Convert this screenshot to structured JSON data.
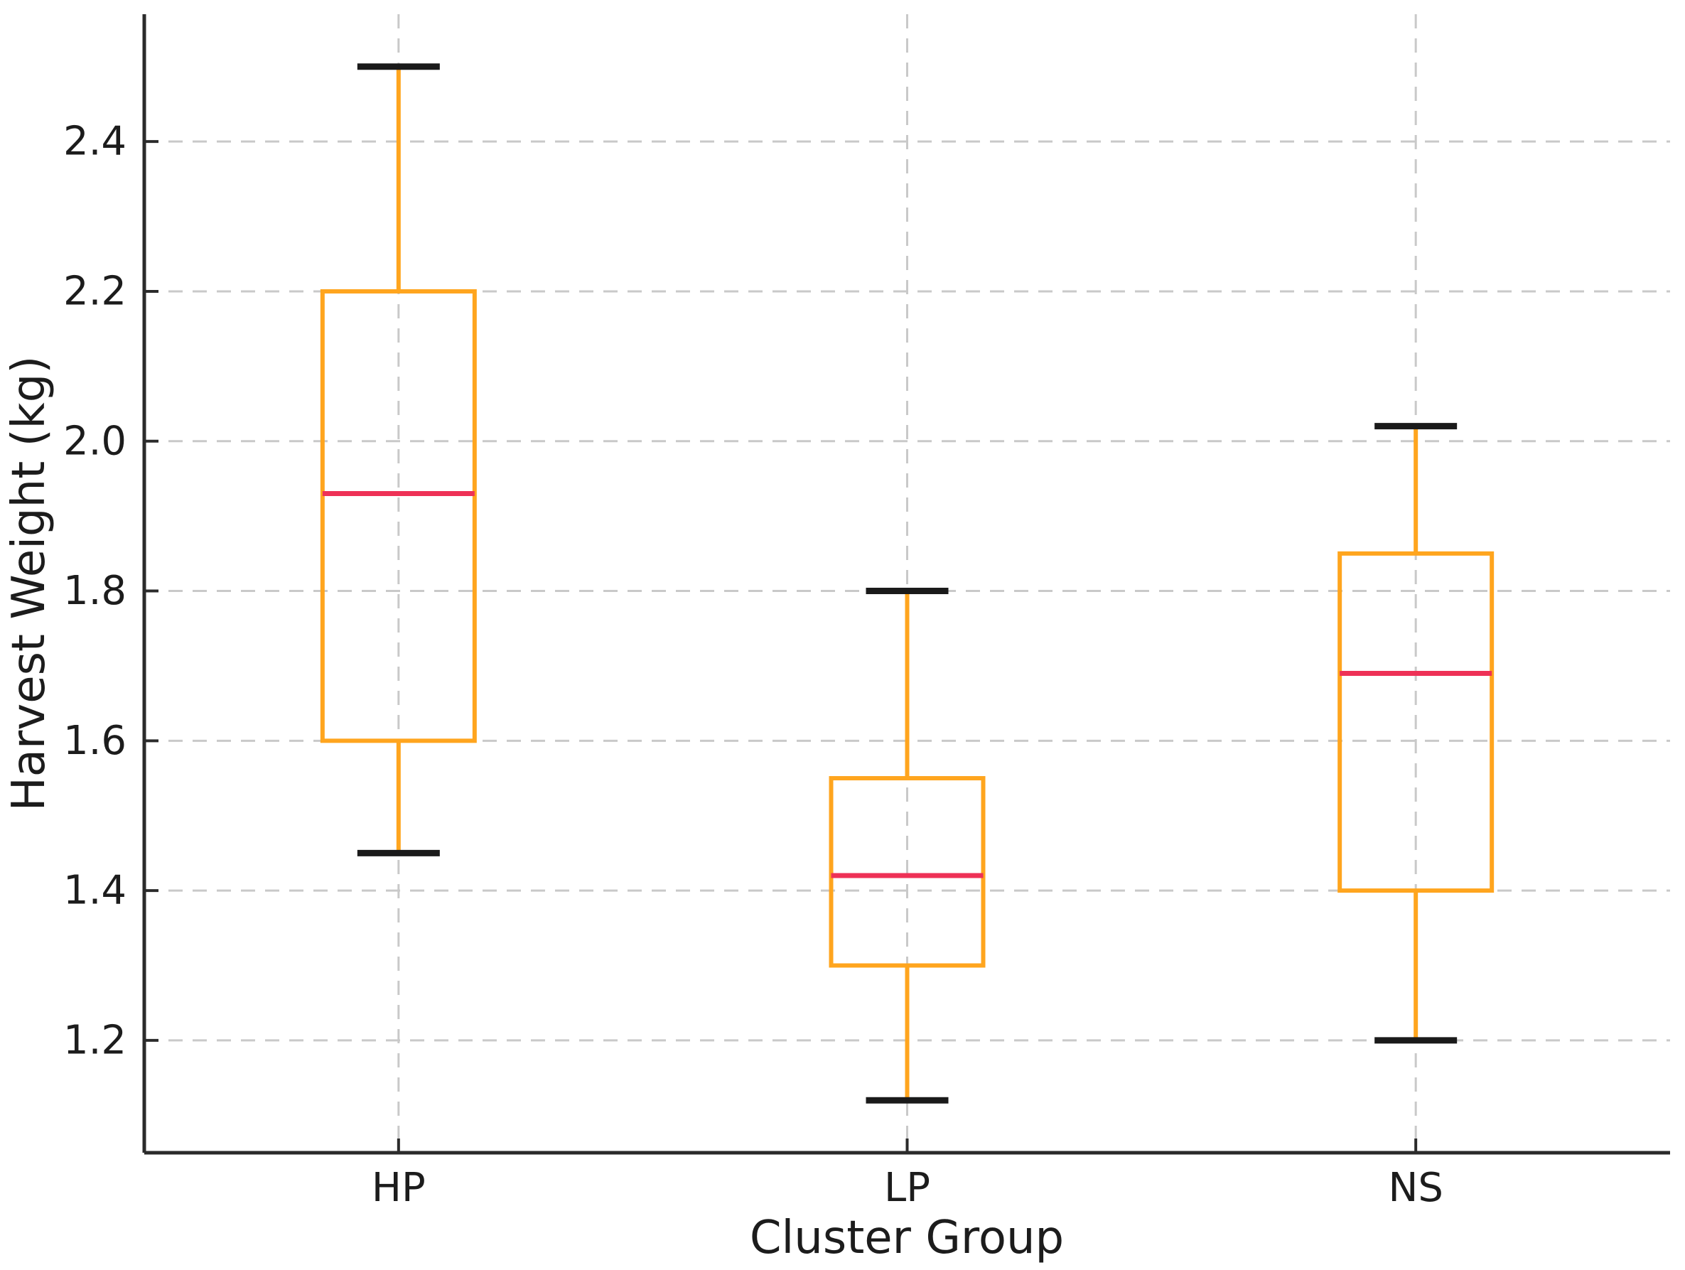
{
  "figure": {
    "background": "#ffffff"
  },
  "chart_data": {
    "type": "boxplot",
    "title": "",
    "xlabel": "Cluster Group",
    "ylabel": "Harvest Weight (kg)",
    "categories": [
      "HP",
      "LP",
      "NS"
    ],
    "series": [
      {
        "name": "HP",
        "whisker_low": 1.45,
        "q1": 1.6,
        "median": 1.93,
        "q3": 2.2,
        "whisker_high": 2.5
      },
      {
        "name": "LP",
        "whisker_low": 1.12,
        "q1": 1.3,
        "median": 1.42,
        "q3": 1.55,
        "whisker_high": 1.8
      },
      {
        "name": "NS",
        "whisker_low": 1.2,
        "q1": 1.4,
        "median": 1.69,
        "q3": 1.85,
        "whisker_high": 2.02
      }
    ],
    "ylim": [
      1.05,
      2.57
    ],
    "xlim": [
      0.5,
      3.5
    ],
    "yticks": [
      1.2,
      1.4,
      1.6,
      1.8,
      2.0,
      2.2,
      2.4
    ],
    "ytick_labels": [
      "1.2",
      "1.4",
      "1.6",
      "1.8",
      "2.0",
      "2.2",
      "2.4"
    ],
    "grid": true,
    "grid_style": "dashed",
    "legend": false,
    "tick_direction": "in",
    "colors": {
      "box": "#ffa51e",
      "whisker": "#ffa51e",
      "median": "#ee3156",
      "cap": "#1a1a1a",
      "grid": "#c9c9c9",
      "spine": "#2b2b2b",
      "text": "#1c1c1c",
      "background": "#ffffff"
    }
  }
}
